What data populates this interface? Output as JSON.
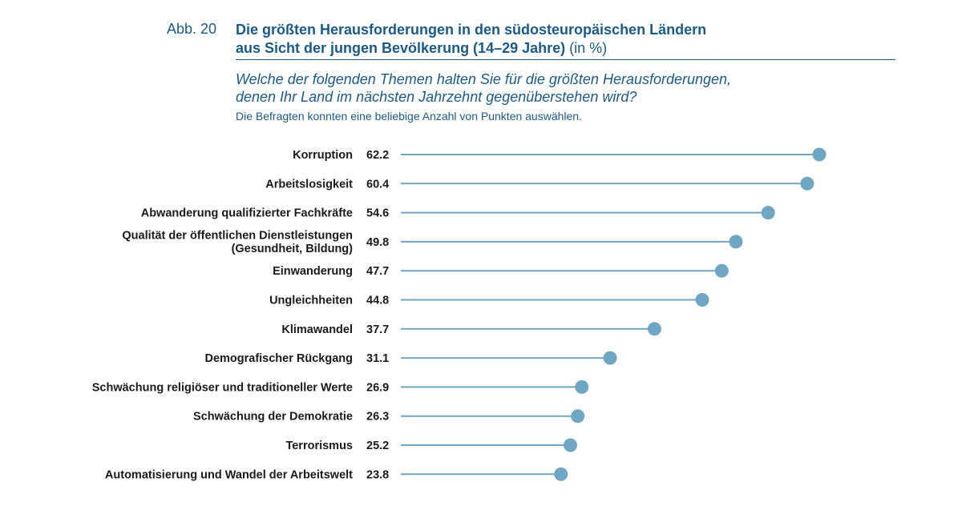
{
  "header": {
    "figure_label": "Abb. 20",
    "title_line1": "Die größten Herausforderungen in den südosteuropäischen Ländern",
    "title_line2": "aus Sicht der jungen Bevölkerung (14–29 Jahre)",
    "title_unit": " (in %)",
    "question_line1": "Welche der folgenden Themen halten Sie für die größten Herausforderungen,",
    "question_line2": "denen Ihr Land im nächsten Jahrzehnt gegenüberstehen wird?",
    "note": "Die Befragten konnten eine beliebige Anzahl von Punkten auswählen."
  },
  "colors": {
    "title": "#1a5a8a",
    "dot": "#6fa6c4",
    "stem": "#6fa6c4",
    "label": "#1a1a1a"
  },
  "chart_data": {
    "type": "lollipop",
    "orientation": "horizontal",
    "categories": [
      [
        "Korruption"
      ],
      [
        "Arbeitslosigkeit"
      ],
      [
        "Abwanderung qualifizierter Fachkräfte"
      ],
      [
        "Qualität der öffentlichen Dienstleistungen",
        "(Gesundheit, Bildung)"
      ],
      [
        "Einwanderung"
      ],
      [
        "Ungleichheiten"
      ],
      [
        "Klimawandel"
      ],
      [
        "Demografischer Rückgang"
      ],
      [
        "Schwächung religiöser und traditioneller Werte"
      ],
      [
        "Schwächung der Demokratie"
      ],
      [
        "Terrorismus"
      ],
      [
        "Automatisierung und Wandel der Arbeitswelt"
      ]
    ],
    "values": [
      62.2,
      60.4,
      54.6,
      49.8,
      47.7,
      44.8,
      37.7,
      31.1,
      26.9,
      26.3,
      25.2,
      23.8
    ],
    "value_labels": [
      "62.2",
      "60.4",
      "54.6",
      "49.8",
      "47.7",
      "44.8",
      "37.7",
      "31.1",
      "26.9",
      "26.3",
      "25.2",
      "23.8"
    ],
    "unit": "%",
    "sorted": "descending",
    "axis_visible": false,
    "grid": false
  }
}
